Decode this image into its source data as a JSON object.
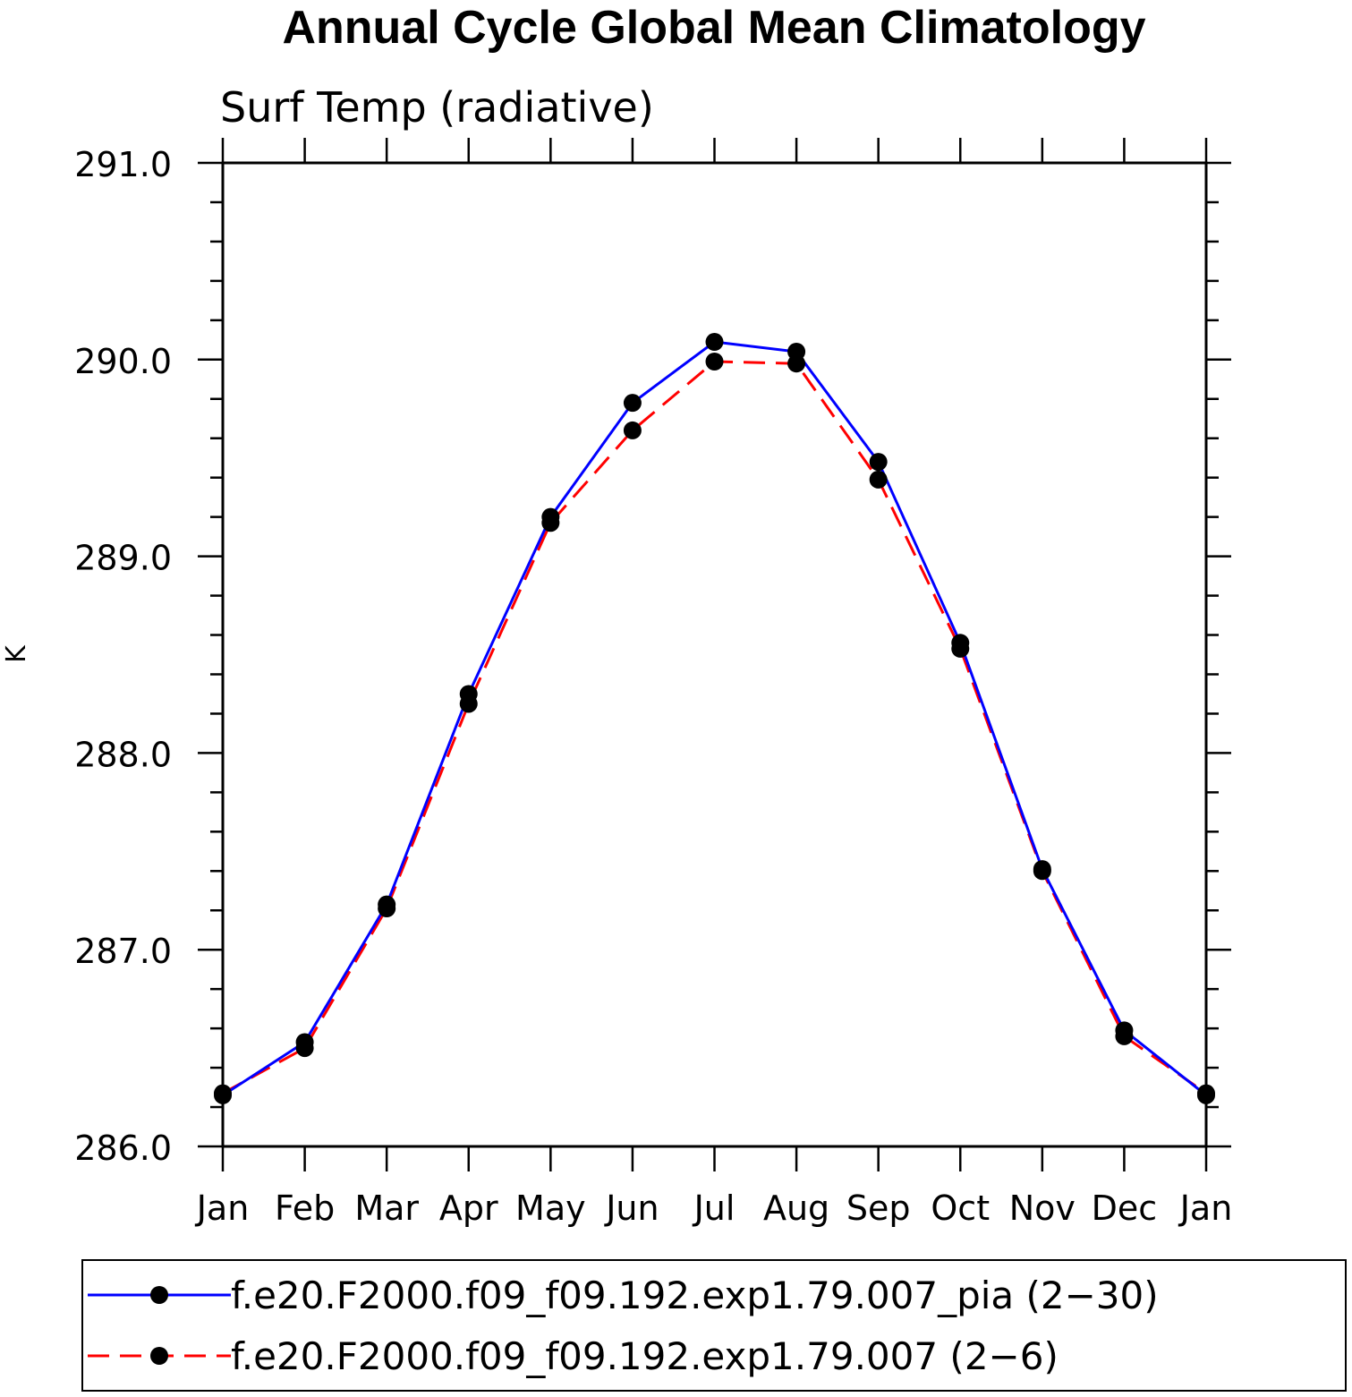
{
  "chart_data": {
    "type": "line",
    "title": "Annual Cycle Global Mean Climatology",
    "subtitle": "Surf Temp (radiative)",
    "ylabel": "K",
    "xlabel": "",
    "categories": [
      "Jan",
      "Feb",
      "Mar",
      "Apr",
      "May",
      "Jun",
      "Jul",
      "Aug",
      "Sep",
      "Oct",
      "Nov",
      "Dec",
      "Jan"
    ],
    "ylim": [
      286.0,
      291.0
    ],
    "yticks": [
      "286.0",
      "287.0",
      "288.0",
      "289.0",
      "290.0",
      "291.0"
    ],
    "legend_position": "bottom",
    "series": [
      {
        "name": "f.e20.F2000.f09_f09.192.exp1.79.007_pia (2−30)",
        "color": "#0000ff",
        "dash": "solid",
        "marker": "filled-circle",
        "values": [
          286.26,
          286.53,
          287.23,
          288.3,
          289.2,
          289.78,
          290.09,
          290.04,
          289.48,
          288.56,
          287.41,
          286.59,
          286.26
        ]
      },
      {
        "name": "f.e20.F2000.f09_f09.192.exp1.79.007 (2−6)",
        "color": "#ff0000",
        "dash": "dashed",
        "marker": "filled-circle",
        "values": [
          286.27,
          286.5,
          287.21,
          288.25,
          289.17,
          289.64,
          289.99,
          289.98,
          289.39,
          288.53,
          287.4,
          286.56,
          286.27
        ]
      }
    ]
  }
}
